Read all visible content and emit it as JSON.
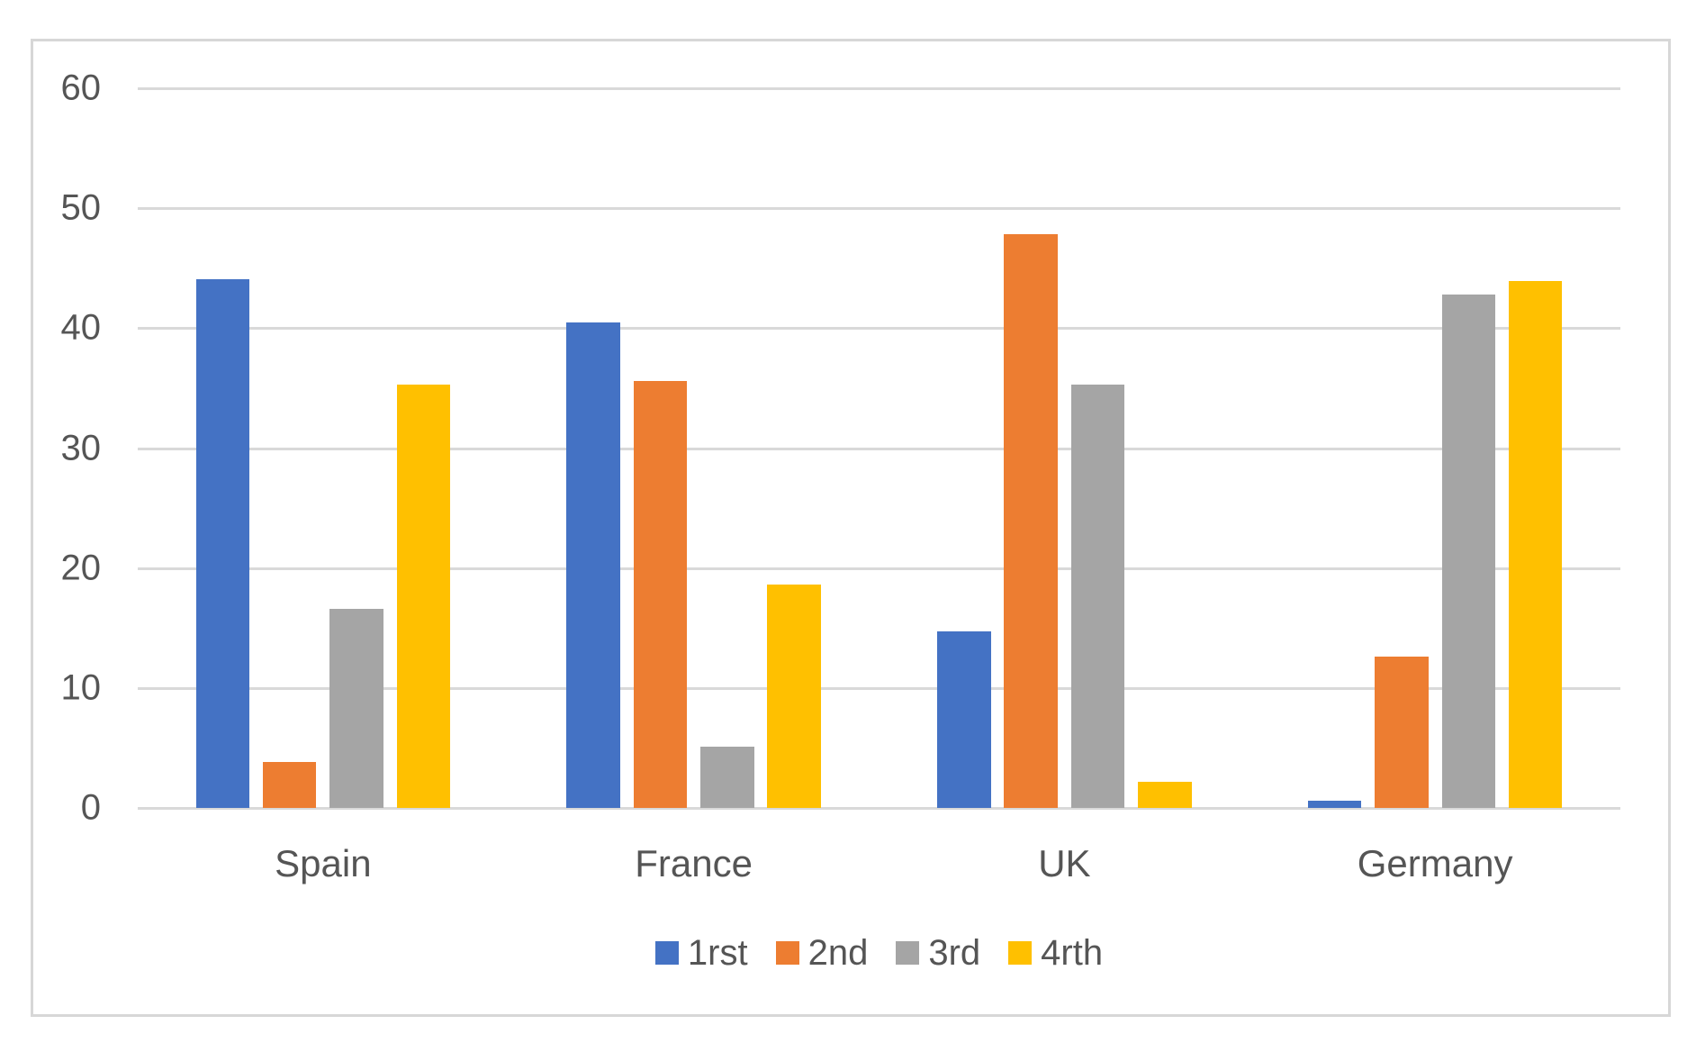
{
  "chart_data": {
    "type": "bar",
    "title": "",
    "xlabel": "",
    "ylabel": "",
    "categories": [
      "Spain",
      "France",
      "UK",
      "Germany"
    ],
    "series": [
      {
        "name": "1rst",
        "color": "#4472C4",
        "values": [
          44.1,
          40.5,
          14.7,
          0.6
        ]
      },
      {
        "name": "2nd",
        "color": "#ED7D31",
        "values": [
          3.8,
          35.6,
          47.8,
          12.6
        ]
      },
      {
        "name": "3rd",
        "color": "#A5A5A5",
        "values": [
          16.6,
          5.1,
          35.3,
          42.8
        ]
      },
      {
        "name": "4rth",
        "color": "#FFC000",
        "values": [
          35.3,
          18.6,
          2.2,
          43.9
        ]
      }
    ],
    "ylim": [
      0,
      60
    ],
    "ytick_interval": 10,
    "ytick_labels": [
      "0",
      "10",
      "20",
      "30",
      "40",
      "50",
      "60"
    ],
    "grid": true,
    "legend_position": "bottom"
  },
  "styles": {
    "gridline_color": "#d9d9d9",
    "border_color": "#d7d7d7",
    "label_color": "#555555",
    "background_color": "#ffffff"
  }
}
